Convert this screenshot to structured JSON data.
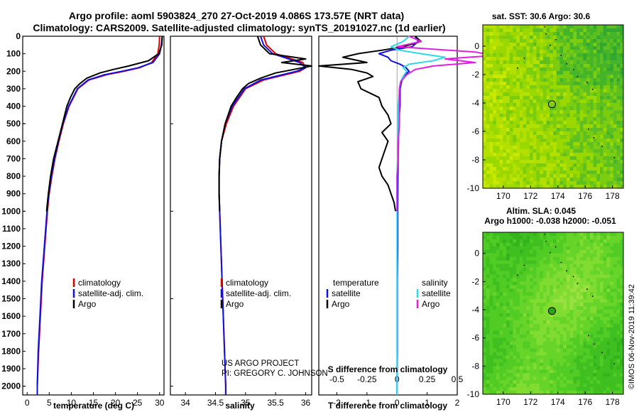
{
  "header": {
    "line1": "Argo profile: aoml 5903824_270 27-Oct-2019 4.086S 173.57E (NRT data)",
    "line2": "Climatology: CARS2009. Satellite-adjusted climatology: synTS_20191027.nc (1d earlier)"
  },
  "colors": {
    "climatology": "#e00000",
    "satellite": "#1010e0",
    "argo": "#000000",
    "sal_satellite": "#30d8e8",
    "sal_argo": "#e020e0"
  },
  "depth_ticks": [
    "0",
    "100",
    "200",
    "300",
    "400",
    "500",
    "600",
    "700",
    "800",
    "900",
    "1000",
    "1100",
    "1200",
    "1300",
    "1400",
    "1500",
    "1600",
    "1700",
    "1800",
    "1900",
    "2000"
  ],
  "credits": {
    "line1": "US ARGO PROJECT",
    "line2": "PI: GREGORY C. JOHNSON"
  },
  "timestamp": "©IMOS 06-Nov-2019 11:39:42",
  "chart_data": [
    {
      "type": "line",
      "name": "temperature-profile",
      "xlabel": "temperature (deg C)",
      "xlim": [
        -1,
        31
      ],
      "ylim": [
        2050,
        0
      ],
      "xticks": [
        "0",
        "5",
        "10",
        "15",
        "20",
        "25",
        "30"
      ],
      "legend": [
        "climatology",
        "satellite-adj. clim.",
        "Argo"
      ],
      "series": [
        {
          "name": "climatology",
          "depth": [
            0,
            50,
            100,
            150,
            180,
            200,
            220,
            250,
            300,
            400,
            500,
            600,
            700,
            800,
            900,
            1000,
            1200,
            1400,
            1600,
            1800,
            2000,
            2050
          ],
          "values": [
            30.0,
            29.9,
            29.6,
            28.2,
            25.5,
            22.0,
            18.0,
            14.0,
            11.5,
            9.5,
            8.2,
            7.2,
            6.3,
            5.6,
            5.0,
            4.6,
            4.0,
            3.4,
            3.0,
            2.6,
            2.3,
            2.3
          ]
        },
        {
          "name": "satellite-adj. clim.",
          "depth": [
            0,
            50,
            100,
            150,
            180,
            200,
            220,
            250,
            300,
            400,
            500,
            600,
            700,
            800,
            900,
            1000,
            1200,
            1400,
            1600,
            1800,
            2000,
            2050
          ],
          "values": [
            30.6,
            30.4,
            30.0,
            28.5,
            25.2,
            21.5,
            17.5,
            13.8,
            11.4,
            9.4,
            8.1,
            7.1,
            6.2,
            5.5,
            4.9,
            4.5,
            3.9,
            3.3,
            2.9,
            2.5,
            2.3,
            2.3
          ]
        },
        {
          "name": "Argo",
          "depth": [
            0,
            50,
            100,
            140,
            170,
            190,
            210,
            240,
            270,
            300,
            350,
            400,
            500,
            600,
            700,
            800,
            900,
            1000
          ],
          "values": [
            30.6,
            30.5,
            29.8,
            27.5,
            23.0,
            19.5,
            16.5,
            13.5,
            12.0,
            10.8,
            9.8,
            9.0,
            8.0,
            7.0,
            6.0,
            5.3,
            4.8,
            4.4
          ]
        }
      ]
    },
    {
      "type": "line",
      "name": "salinity-profile",
      "xlabel": "salinity",
      "xlim": [
        33.75,
        36.1
      ],
      "ylim": [
        2050,
        0
      ],
      "xticks": [
        "34",
        "34.5",
        "35",
        "35.5",
        "36"
      ],
      "legend": [
        "climatology",
        "satellite-adj. clim.",
        "Argo"
      ],
      "series": [
        {
          "name": "climatology",
          "depth": [
            0,
            50,
            100,
            150,
            180,
            200,
            250,
            300,
            400,
            500,
            600,
            700,
            800,
            900,
            1000,
            1200,
            1400,
            1600,
            1800,
            2000,
            2050
          ],
          "values": [
            35.3,
            35.35,
            35.5,
            35.95,
            36.0,
            35.9,
            35.3,
            35.0,
            34.8,
            34.68,
            34.6,
            34.57,
            34.56,
            34.56,
            34.57,
            34.59,
            34.61,
            34.63,
            34.65,
            34.67,
            34.67
          ]
        },
        {
          "name": "satellite-adj. clim.",
          "depth": [
            0,
            50,
            100,
            150,
            180,
            200,
            250,
            300,
            400,
            500,
            600,
            700,
            800,
            900,
            1000,
            1200,
            1400,
            1600,
            1800,
            2000,
            2050
          ],
          "values": [
            35.25,
            35.3,
            35.45,
            35.9,
            36.0,
            35.85,
            35.25,
            34.98,
            34.78,
            34.66,
            34.6,
            34.57,
            34.56,
            34.56,
            34.57,
            34.59,
            34.61,
            34.63,
            34.65,
            34.67,
            34.67
          ]
        },
        {
          "name": "Argo",
          "depth": [
            0,
            50,
            100,
            130,
            150,
            170,
            190,
            210,
            240,
            270,
            300,
            350,
            400,
            500,
            600,
            700,
            800,
            900,
            1000
          ],
          "values": [
            35.2,
            35.25,
            35.4,
            36.0,
            35.6,
            36.1,
            35.8,
            35.5,
            35.25,
            35.05,
            34.95,
            34.85,
            34.76,
            34.66,
            34.6,
            34.57,
            34.56,
            34.56,
            34.57
          ]
        }
      ]
    },
    {
      "type": "line",
      "name": "difference-from-climatology",
      "xlabel": "T difference from climatology",
      "xlabel_top": "S difference from climatology",
      "xlim": [
        -2.6,
        2.0
      ],
      "ylim": [
        2050,
        0
      ],
      "xticks": [
        "-2",
        "-1",
        "0",
        "1",
        "2"
      ],
      "xticks_top": [
        "-0.5",
        "-0.25",
        "0",
        "0.25",
        "0.5"
      ],
      "legend_left_title": "temperature",
      "legend_right_title": "salinity",
      "legend_left": [
        "satellite",
        "Argo"
      ],
      "legend_right": [
        "satellite",
        "Argo"
      ],
      "series": [
        {
          "name": "T satellite",
          "depth": [
            0,
            30,
            60,
            80,
            100,
            120,
            140,
            160,
            180,
            200,
            230,
            260,
            300,
            400,
            500,
            600,
            800,
            1000,
            1200,
            1400,
            1600,
            1800,
            2000,
            2050
          ],
          "values": [
            0.6,
            0.7,
            0.5,
            -0.2,
            -0.6,
            -0.3,
            -0.2,
            0.1,
            0.3,
            0.4,
            0.2,
            0.15,
            0.1,
            0.1,
            0.05,
            0.05,
            0.03,
            0.02,
            0.02,
            0.01,
            0.01,
            0.01,
            0.0,
            0.0
          ]
        },
        {
          "name": "T Argo",
          "depth": [
            0,
            30,
            60,
            80,
            100,
            120,
            150,
            170,
            190,
            210,
            230,
            260,
            300,
            350,
            400,
            450,
            500,
            550,
            600,
            700,
            750,
            800,
            850,
            900,
            950,
            1000
          ],
          "values": [
            0.6,
            0.8,
            0.2,
            -0.5,
            -1.3,
            -1.8,
            -1.0,
            -2.6,
            -1.5,
            -1.0,
            -0.8,
            -1.3,
            -1.2,
            -0.6,
            -0.5,
            -0.3,
            -0.2,
            -0.5,
            -0.3,
            -0.5,
            -0.6,
            -0.5,
            -0.3,
            -0.2,
            -0.1,
            -0.05
          ]
        },
        {
          "name": "S satellite",
          "depth": [
            0,
            30,
            60,
            80,
            100,
            120,
            140,
            160,
            180,
            200,
            230,
            260,
            300,
            400,
            600,
            800,
            1000,
            1200,
            1400,
            1600,
            1800,
            2000,
            2050
          ],
          "values": [
            0.1,
            0.05,
            -0.05,
            0.02,
            0.2,
            0.4,
            0.3,
            0.1,
            0.05,
            0.08,
            0.05,
            0.03,
            0.02,
            0.01,
            0.01,
            0.0,
            0.0,
            0.0,
            0.0,
            0.0,
            0.0,
            0.0,
            0.0
          ]
        },
        {
          "name": "S Argo",
          "depth": [
            0,
            30,
            60,
            90,
            110,
            130,
            150,
            170,
            190,
            220,
            260,
            300,
            400,
            500,
            600,
            700,
            800,
            900,
            1000
          ],
          "values": [
            0.1,
            0.2,
            0.0,
            0.65,
            0.8,
            0.4,
            0.65,
            0.3,
            0.15,
            0.08,
            0.03,
            0.02,
            0.02,
            0.02,
            0.01,
            0.01,
            0.0,
            0.0,
            0.0
          ]
        }
      ]
    },
    {
      "type": "heatmap",
      "name": "sst-map",
      "title": "sat. SST: 30.6 Argo: 30.6",
      "xlim": [
        168.5,
        178.8
      ],
      "ylim": [
        -10,
        1.5
      ],
      "xticks": [
        "170",
        "172",
        "174",
        "176",
        "178"
      ],
      "yticks": [
        "0",
        "-2",
        "-4",
        "-6",
        "-8",
        "-10"
      ],
      "marker": {
        "lon": 173.57,
        "lat": -4.086
      }
    },
    {
      "type": "heatmap",
      "name": "sla-map",
      "title": "Altim. SLA: 0.045",
      "subtitle": "Argo h1000: -0.038 h2000: -0.051",
      "xlim": [
        168.5,
        178.8
      ],
      "ylim": [
        -10,
        1.5
      ],
      "xticks": [
        "170",
        "172",
        "174",
        "176",
        "178"
      ],
      "yticks": [
        "0",
        "-2",
        "-4",
        "-6",
        "-8",
        "-10"
      ],
      "marker": {
        "lon": 173.57,
        "lat": -4.086
      }
    }
  ]
}
